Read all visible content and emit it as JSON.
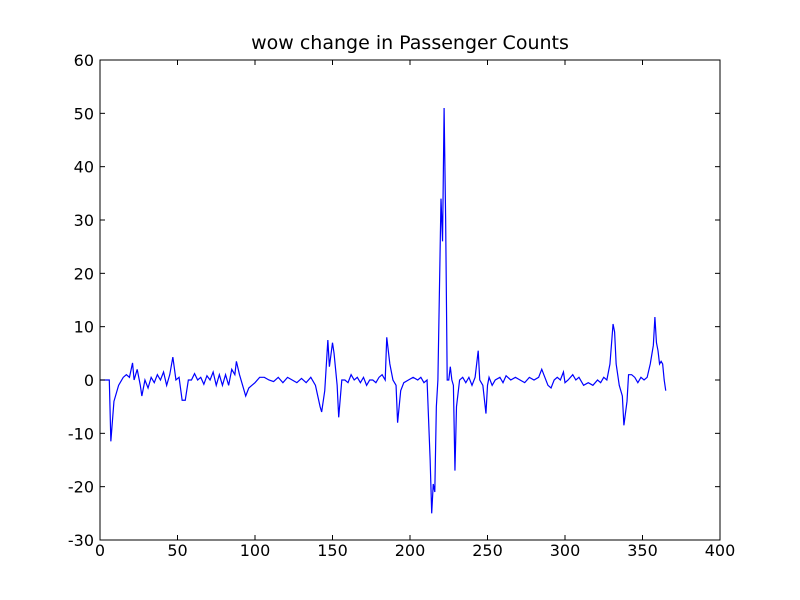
{
  "chart_data": {
    "type": "line",
    "title": "wow change in Passenger Counts",
    "color": "#0000ff",
    "x": [
      0,
      6,
      7,
      9,
      12,
      15,
      17,
      19,
      21,
      22,
      24,
      26,
      27,
      29,
      31,
      33,
      35,
      37,
      39,
      41,
      43,
      45,
      47,
      49,
      51,
      53,
      55,
      57,
      59,
      61,
      63,
      65,
      67,
      69,
      71,
      73,
      75,
      77,
      79,
      81,
      83,
      85,
      87,
      88,
      90,
      92,
      94,
      96,
      98,
      100,
      103,
      106,
      109,
      112,
      115,
      118,
      121,
      124,
      127,
      130,
      133,
      136,
      139,
      142,
      143,
      145,
      147,
      148,
      150,
      151,
      153,
      154,
      156,
      158,
      160,
      162,
      164,
      166,
      168,
      170,
      172,
      174,
      176,
      178,
      180,
      182,
      184,
      185,
      187,
      189,
      191,
      192,
      194,
      196,
      199,
      202,
      205,
      207,
      209,
      211,
      213,
      214,
      215,
      216,
      217,
      218,
      220,
      221,
      222,
      223,
      224,
      225,
      226,
      227,
      228,
      229,
      230,
      232,
      234,
      236,
      238,
      240,
      242,
      244,
      245,
      247,
      249,
      250,
      251,
      253,
      255,
      258,
      260,
      262,
      265,
      268,
      271,
      274,
      277,
      280,
      283,
      285,
      287,
      289,
      291,
      293,
      295,
      297,
      299,
      300,
      302,
      305,
      307,
      309,
      312,
      315,
      318,
      321,
      323,
      325,
      327,
      329,
      331,
      332,
      333,
      335,
      337,
      338,
      340,
      341,
      343,
      345,
      347,
      349,
      351,
      353,
      355,
      357,
      358,
      359,
      360,
      361,
      362,
      363,
      364,
      365
    ],
    "values": [
      0,
      0,
      -11.5,
      -4,
      -1,
      0.5,
      1,
      0.5,
      3.2,
      0,
      2,
      -1,
      -3,
      0,
      -1.5,
      0.5,
      -0.5,
      1,
      0,
      1.5,
      -1,
      1,
      4.3,
      0,
      0.5,
      -3.8,
      -3.8,
      0,
      0,
      1.2,
      0,
      0.5,
      -0.8,
      0.8,
      0,
      1.5,
      -1,
      1,
      -1,
      1,
      -1,
      2,
      1,
      3.5,
      1,
      -1,
      -3,
      -1.5,
      -1,
      -0.5,
      0.5,
      0.5,
      0,
      -0.3,
      0.5,
      -0.5,
      0.5,
      0,
      -0.5,
      0.3,
      -0.5,
      0.5,
      -1,
      -5,
      -6,
      -2,
      7.5,
      2.5,
      7,
      5,
      -1,
      -7,
      0,
      0,
      -0.5,
      1,
      0,
      0.5,
      -0.5,
      0.5,
      -1,
      0,
      0,
      -0.5,
      0.5,
      1,
      0,
      8,
      3,
      0,
      -1,
      -8,
      -2,
      -0.5,
      0,
      0.5,
      0,
      0.5,
      -0.5,
      0,
      -15,
      -25,
      -19.5,
      -21,
      -5,
      0,
      34,
      26,
      51,
      30,
      0,
      0,
      2.5,
      0,
      -1,
      -17,
      -5,
      0,
      0.5,
      -0.5,
      0.5,
      -1,
      0.5,
      5.5,
      0,
      -1,
      -6.3,
      -1,
      0.5,
      -1,
      0,
      0.5,
      -0.5,
      0.8,
      0,
      0.5,
      0,
      -0.5,
      0.5,
      0,
      0.5,
      2,
      0.5,
      -1,
      -1.5,
      0,
      0.5,
      0,
      1.5,
      -0.5,
      0,
      1,
      0,
      0.5,
      -1,
      -0.5,
      -1,
      0,
      -0.5,
      0.5,
      0,
      3,
      10.5,
      9,
      3,
      -1,
      -3,
      -8.5,
      -4,
      1,
      1,
      0.5,
      -0.5,
      0.5,
      0,
      0.5,
      3,
      6.5,
      11.8,
      7,
      5.5,
      3,
      3.5,
      3,
      0,
      -2
    ],
    "xlim": [
      0,
      400
    ],
    "xticks": [
      0,
      50,
      100,
      150,
      200,
      250,
      300,
      350,
      400
    ],
    "ylim": [
      -30,
      60
    ],
    "yticks": [
      -30,
      -20,
      -10,
      0,
      10,
      20,
      30,
      40,
      50,
      60
    ]
  }
}
